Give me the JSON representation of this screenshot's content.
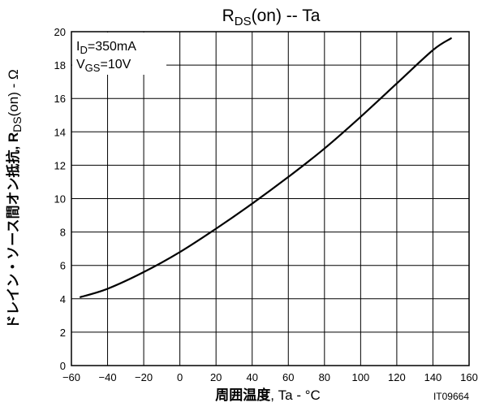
{
  "chart_data": {
    "type": "line",
    "title": {
      "main": "R",
      "sub": "DS",
      "rest": "(on)  --  Ta"
    },
    "xlabel": {
      "bold": "周囲温度",
      "rest": ", Ta  -  °C"
    },
    "ylabel": {
      "main": "ドレイン・ソース間オン抵抗, R",
      "sub": "DS",
      "rest": "(on)  -  Ω"
    },
    "xlim": [
      -60,
      160
    ],
    "ylim": [
      0,
      20
    ],
    "x_ticks": [
      "−60",
      "−40",
      "−20",
      "0",
      "20",
      "40",
      "60",
      "80",
      "100",
      "120",
      "140",
      "160"
    ],
    "y_ticks": [
      "0",
      "2",
      "4",
      "6",
      "8",
      "10",
      "12",
      "14",
      "16",
      "18",
      "20"
    ],
    "grid": true,
    "conditions": [
      {
        "main": "I",
        "sub": "D",
        "rest": "=350mA"
      },
      {
        "main": "V",
        "sub": "GS",
        "rest": "=10V"
      }
    ],
    "series": [
      {
        "x": [
          -55,
          -40,
          -20,
          0,
          20,
          40,
          60,
          80,
          100,
          120,
          140,
          150
        ],
        "y": [
          4.1,
          4.6,
          5.6,
          6.8,
          8.2,
          9.7,
          11.3,
          13.0,
          14.9,
          16.9,
          18.9,
          19.6
        ]
      }
    ],
    "figure_code": "IT09664"
  },
  "colors": {
    "line": "#000000",
    "grid": "#000000",
    "background": "#ffffff"
  }
}
